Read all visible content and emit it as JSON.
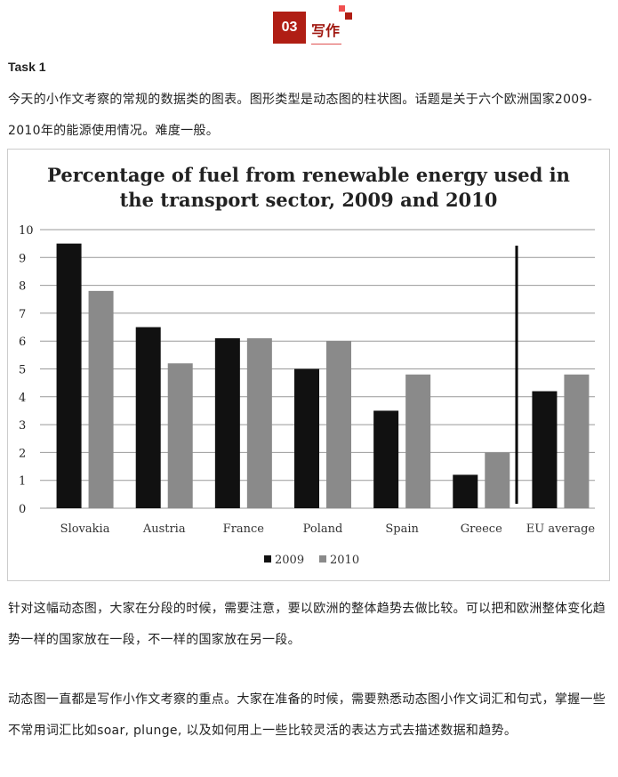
{
  "header": {
    "number": "03",
    "title": "写作"
  },
  "task_title": "Task 1",
  "intro": "今天的小作文考察的常规的数据类的图表。图形类型是动态图的柱状图。话题是关于六个欧洲国家2009-2010年的能源使用情况。难度一般。",
  "paragraph1": "针对这幅动态图，大家在分段的时候，需要注意，要以欧洲的整体趋势去做比较。可以把和欧洲整体变化趋势一样的国家放在一段，不一样的国家放在另一段。",
  "paragraph2": "动态图一直都是写作小作文考察的重点。大家在准备的时候，需要熟悉动态图小作文词汇和句式，掌握一些不常用词汇比如soar, plunge, 以及如何用上一些比较灵活的表达方式去描述数据和趋势。",
  "chart_data": {
    "type": "bar",
    "title": [
      "Percentage of fuel from renewable energy used in",
      "the transport sector, 2009 and 2010"
    ],
    "categories": [
      "Slovakia",
      "Austria",
      "France",
      "Poland",
      "Spain",
      "Greece",
      "EU average"
    ],
    "series": [
      {
        "name": "2009",
        "color": "#111111",
        "values": [
          9.5,
          6.5,
          6.1,
          5.0,
          3.5,
          1.2,
          4.2
        ]
      },
      {
        "name": "2010",
        "color": "#8a8a8a",
        "values": [
          7.8,
          5.2,
          6.1,
          6.0,
          4.8,
          2.0,
          4.8
        ]
      }
    ],
    "yticks": [
      "0",
      "1",
      "2",
      "3",
      "4",
      "5",
      "6",
      "7",
      "8",
      "9",
      "10"
    ],
    "ylim": [
      0,
      10
    ],
    "grid": true,
    "legend": "bottom"
  }
}
